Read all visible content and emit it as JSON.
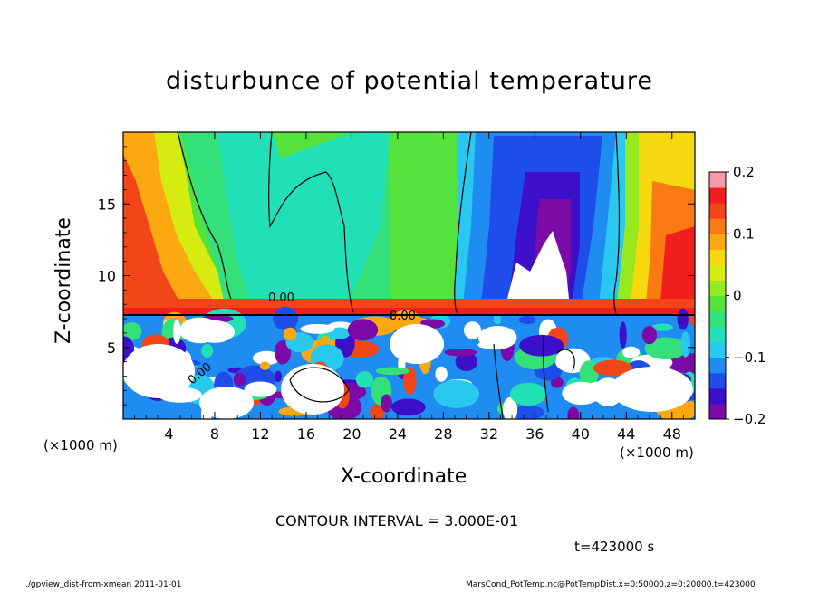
{
  "title": "disturbunce of potential temperature",
  "x_unit_left": "(×1000 m)",
  "x_unit_right": "(×1000 m)",
  "contour_interval": "CONTOUR INTERVAL = 3.000E-01",
  "time_label": "t=423000 s",
  "footer_left": "./gpview_dist-from-xmean  2011-01-01",
  "footer_right": "MarsCond_PotTemp.nc@PotTempDist,x=0:50000,z=0:20000,t=423000",
  "chart_data": {
    "type": "heatmap",
    "xlabel": "X-coordinate",
    "ylabel": "Z-coordinate",
    "xlim": [
      0,
      50
    ],
    "ylim": [
      0,
      20
    ],
    "x_ticks": [
      4,
      8,
      12,
      16,
      20,
      24,
      28,
      32,
      36,
      40,
      44,
      48
    ],
    "y_ticks": [
      5,
      10,
      15
    ],
    "grid": false,
    "colorbar": {
      "placement": "right",
      "min": -0.2,
      "max": 0.2,
      "ticks": [
        0.2,
        0.1,
        0,
        -0.1,
        -0.2
      ],
      "tick_labels": [
        "0.2",
        "0.1",
        "0",
        "−0.1",
        "−0.2"
      ],
      "colors": [
        "#7b0aa6",
        "#3b10c8",
        "#1f4dea",
        "#1f8cf2",
        "#28c8ef",
        "#22e0b6",
        "#33e07a",
        "#55e23c",
        "#98e81e",
        "#d6ec10",
        "#f6d80e",
        "#fca810",
        "#fb7a14",
        "#f24618",
        "#f11e1e",
        "#f59aa8"
      ]
    },
    "contour_labels": [
      "0.00",
      "0.00",
      "0.00"
    ],
    "contour_interval": 0.3
  }
}
